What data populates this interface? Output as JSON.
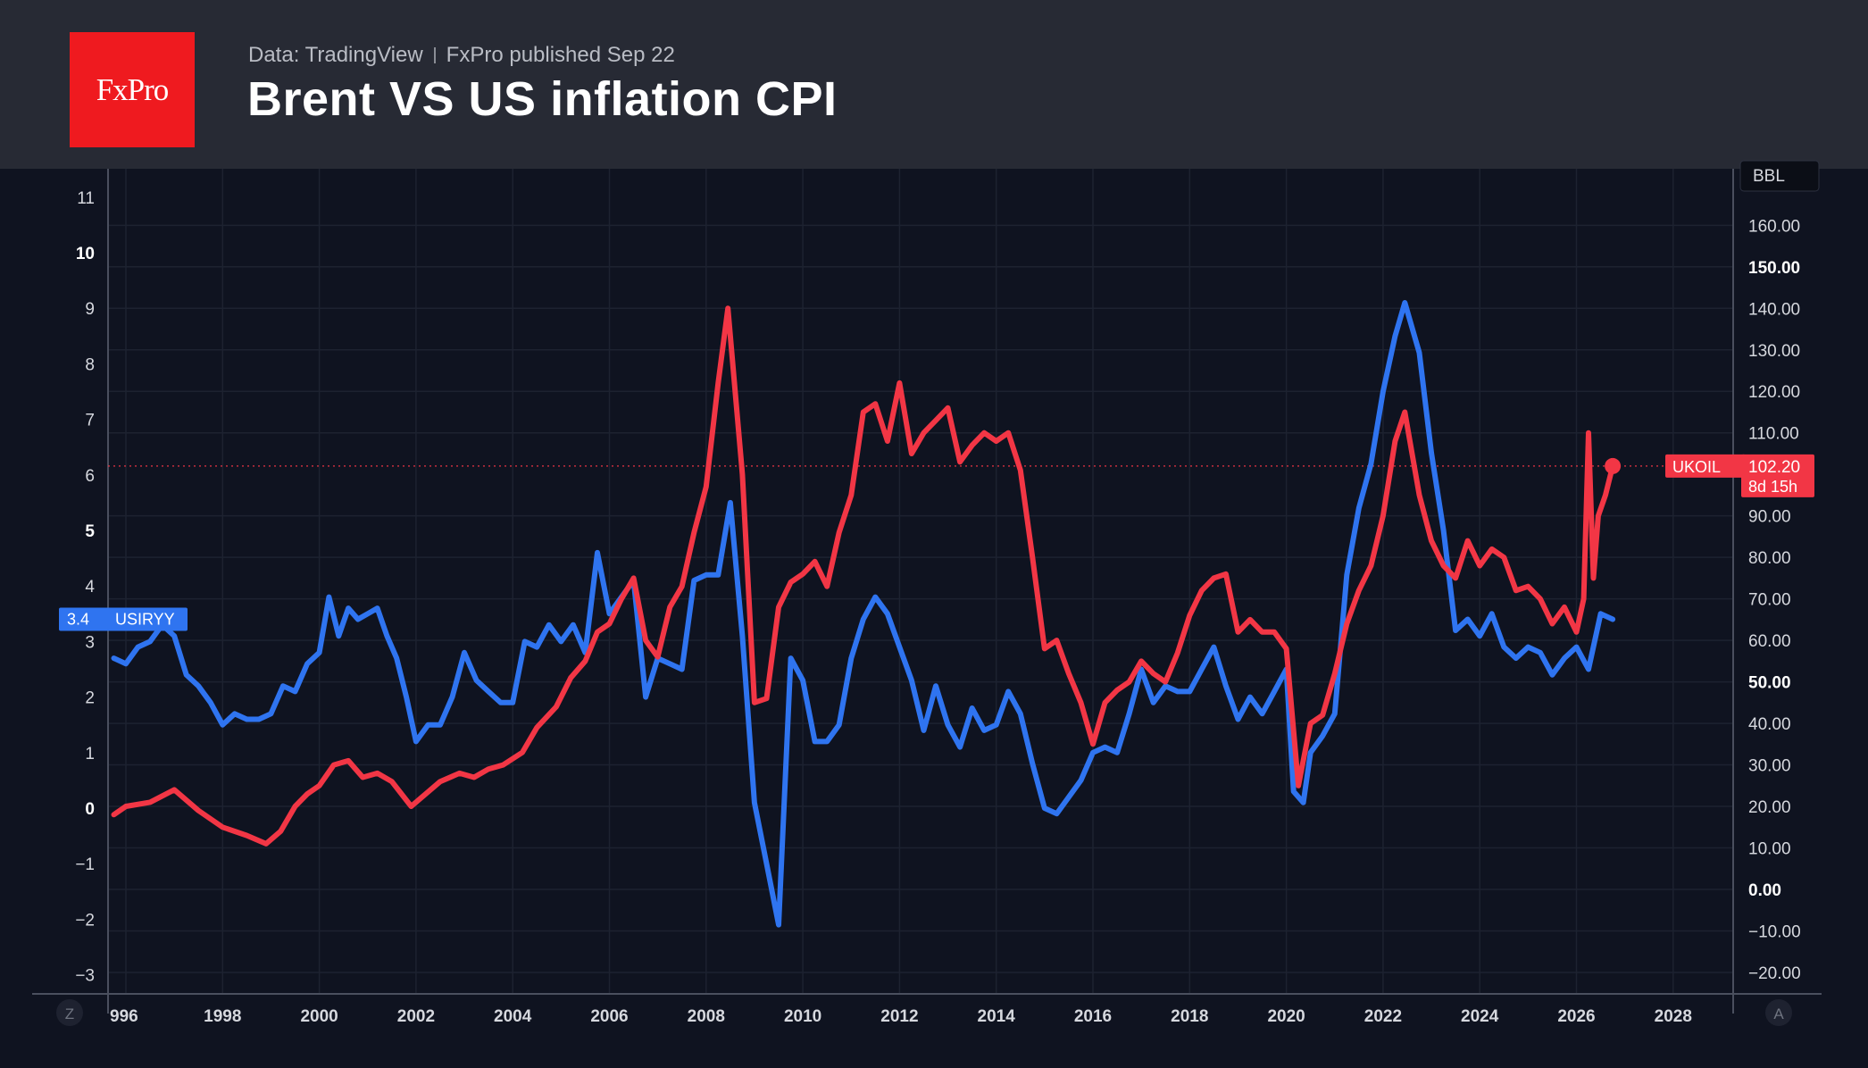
{
  "header": {
    "logo_text": "FxPro",
    "source": "Data: TradingView",
    "published": "FxPro published Sep 22",
    "title": "Brent VS US inflation CPI"
  },
  "colors": {
    "background": "#0f1320",
    "header_bg": "#272a34",
    "logo_bg": "#ef1a1f",
    "cpi_series": "#2f74f0",
    "brent_series": "#f23645",
    "grid": "#1f2433"
  },
  "chart_data": {
    "type": "line",
    "left_axis": {
      "ylim": [
        -3.5,
        11.5
      ],
      "ticks": [
        -3,
        -2,
        -1,
        0,
        1,
        2,
        3,
        4,
        5,
        6,
        7,
        8,
        9,
        10,
        11
      ],
      "bold_ticks": [
        0,
        5,
        10
      ]
    },
    "right_axis": {
      "unit_label": "BBL",
      "ylim": [
        -22.5,
        162.5
      ],
      "ticks": [
        "−20.00",
        "−10.00",
        "0.00",
        "10.00",
        "20.00",
        "30.00",
        "40.00",
        "50.00",
        "60.00",
        "70.00",
        "80.00",
        "90.00",
        "110.00",
        "120.00",
        "130.00",
        "140.00",
        "150.00",
        "160.00"
      ],
      "tick_values": [
        -20,
        -10,
        0,
        10,
        20,
        30,
        40,
        50,
        60,
        70,
        80,
        90,
        110,
        120,
        130,
        140,
        150,
        160
      ],
      "bold_ticks": [
        0,
        50,
        150
      ]
    },
    "x_axis": {
      "ticks": [
        "996",
        "1998",
        "2000",
        "2002",
        "2004",
        "2006",
        "2008",
        "2010",
        "2012",
        "2014",
        "2016",
        "2018",
        "2020",
        "2022",
        "2024",
        "2026",
        "2028"
      ],
      "tick_years": [
        1996,
        1998,
        2000,
        2002,
        2004,
        2006,
        2008,
        2010,
        2012,
        2014,
        2016,
        2018,
        2020,
        2022,
        2024,
        2026,
        2028
      ],
      "xlim": [
        1995.7,
        2029.3
      ]
    },
    "corner_left": "Z",
    "corner_right": "A",
    "series": [
      {
        "name": "USIRYY",
        "axis": "left",
        "last_value_label": "3.4",
        "x": [
          1995.75,
          1996.0,
          1996.25,
          1996.5,
          1996.75,
          1997.0,
          1997.25,
          1997.5,
          1997.75,
          1998.0,
          1998.25,
          1998.5,
          1998.75,
          1999.0,
          1999.25,
          1999.5,
          1999.75,
          2000.0,
          2000.2,
          2000.4,
          2000.6,
          2000.8,
          2001.0,
          2001.2,
          2001.4,
          2001.6,
          2001.8,
          2002.0,
          2002.25,
          2002.5,
          2002.75,
          2003.0,
          2003.25,
          2003.5,
          2003.75,
          2004.0,
          2004.25,
          2004.5,
          2004.75,
          2005.0,
          2005.25,
          2005.5,
          2005.75,
          2006.0,
          2006.25,
          2006.5,
          2006.75,
          2007.0,
          2007.25,
          2007.5,
          2007.75,
          2008.0,
          2008.25,
          2008.5,
          2008.75,
          2009.0,
          2009.25,
          2009.5,
          2009.75,
          2010.0,
          2010.25,
          2010.5,
          2010.75,
          2011.0,
          2011.25,
          2011.5,
          2011.75,
          2012.0,
          2012.25,
          2012.5,
          2012.75,
          2013.0,
          2013.25,
          2013.5,
          2013.75,
          2014.0,
          2014.25,
          2014.5,
          2014.75,
          2015.0,
          2015.25,
          2015.5,
          2015.75,
          2016.0,
          2016.25,
          2016.5,
          2016.75,
          2017.0,
          2017.25,
          2017.5,
          2017.75,
          2018.0,
          2018.25,
          2018.5,
          2018.75,
          2019.0,
          2019.25,
          2019.5,
          2019.75,
          2020.0,
          2020.15,
          2020.35,
          2020.5,
          2020.75,
          2021.0,
          2021.25,
          2021.5,
          2021.75,
          2022.0,
          2022.25,
          2022.45,
          2022.75,
          2023.0,
          2023.25,
          2023.5,
          2023.75,
          2024.0,
          2024.25,
          2024.5,
          2024.75,
          2025.0,
          2025.25,
          2025.5,
          2025.75,
          2026.0,
          2026.25,
          2026.5,
          2026.75
        ],
        "values": [
          2.7,
          2.6,
          2.9,
          3.0,
          3.3,
          3.1,
          2.4,
          2.2,
          1.9,
          1.5,
          1.7,
          1.6,
          1.6,
          1.7,
          2.2,
          2.1,
          2.6,
          2.8,
          3.8,
          3.1,
          3.6,
          3.4,
          3.5,
          3.6,
          3.1,
          2.7,
          2.0,
          1.2,
          1.5,
          1.5,
          2.0,
          2.8,
          2.3,
          2.1,
          1.9,
          1.9,
          3.0,
          2.9,
          3.3,
          3.0,
          3.3,
          2.8,
          4.6,
          3.5,
          3.8,
          4.1,
          2.0,
          2.7,
          2.6,
          2.5,
          4.1,
          4.2,
          4.2,
          5.5,
          3.1,
          0.1,
          -1.0,
          -2.1,
          2.7,
          2.3,
          1.2,
          1.2,
          1.5,
          2.7,
          3.4,
          3.8,
          3.5,
          2.9,
          2.3,
          1.4,
          2.2,
          1.5,
          1.1,
          1.8,
          1.4,
          1.5,
          2.1,
          1.7,
          0.8,
          0.0,
          -0.1,
          0.2,
          0.5,
          1.0,
          1.1,
          1.0,
          1.7,
          2.5,
          1.9,
          2.2,
          2.1,
          2.1,
          2.5,
          2.9,
          2.2,
          1.6,
          2.0,
          1.7,
          2.1,
          2.5,
          0.3,
          0.1,
          1.0,
          1.3,
          1.7,
          4.2,
          5.4,
          6.2,
          7.5,
          8.5,
          9.1,
          8.2,
          6.4,
          5.0,
          3.2,
          3.4,
          3.1,
          3.5,
          2.9,
          2.7,
          2.9,
          2.8,
          2.4,
          2.7,
          2.9,
          2.5,
          3.5,
          3.4
        ]
      },
      {
        "name": "UKOIL",
        "axis": "right",
        "last_value_label": "102.20",
        "countdown": "8d 15h",
        "x": [
          1995.75,
          1996.0,
          1996.5,
          1997.0,
          1997.5,
          1998.0,
          1998.5,
          1998.9,
          1999.2,
          1999.5,
          1999.75,
          2000.0,
          2000.3,
          2000.6,
          2000.9,
          2001.2,
          2001.5,
          2001.9,
          2002.2,
          2002.5,
          2002.9,
          2003.2,
          2003.5,
          2003.8,
          2004.2,
          2004.5,
          2004.9,
          2005.2,
          2005.5,
          2005.75,
          2006.0,
          2006.25,
          2006.5,
          2006.75,
          2007.0,
          2007.25,
          2007.5,
          2007.75,
          2008.0,
          2008.25,
          2008.45,
          2008.75,
          2009.0,
          2009.25,
          2009.5,
          2009.75,
          2010.0,
          2010.25,
          2010.5,
          2010.75,
          2011.0,
          2011.25,
          2011.5,
          2011.75,
          2012.0,
          2012.25,
          2012.5,
          2012.75,
          2013.0,
          2013.25,
          2013.5,
          2013.75,
          2014.0,
          2014.25,
          2014.5,
          2014.75,
          2015.0,
          2015.25,
          2015.5,
          2015.75,
          2016.0,
          2016.25,
          2016.5,
          2016.75,
          2017.0,
          2017.25,
          2017.5,
          2017.75,
          2018.0,
          2018.25,
          2018.5,
          2018.75,
          2019.0,
          2019.25,
          2019.5,
          2019.75,
          2020.0,
          2020.25,
          2020.5,
          2020.75,
          2021.0,
          2021.25,
          2021.5,
          2021.75,
          2022.0,
          2022.25,
          2022.45,
          2022.75,
          2023.0,
          2023.25,
          2023.5,
          2023.75,
          2024.0,
          2024.25,
          2024.5,
          2024.75,
          2025.0,
          2025.25,
          2025.5,
          2025.75,
          2026.0,
          2026.15,
          2026.25,
          2026.35,
          2026.45,
          2026.6,
          2026.75
        ],
        "values": [
          18,
          20,
          21,
          24,
          19,
          15,
          13,
          11,
          14,
          20,
          23,
          25,
          30,
          31,
          27,
          28,
          26,
          20,
          23,
          26,
          28,
          27,
          29,
          30,
          33,
          39,
          44,
          51,
          55,
          62,
          64,
          70,
          75,
          60,
          56,
          68,
          73,
          86,
          97,
          122,
          140,
          100,
          45,
          46,
          68,
          74,
          76,
          79,
          73,
          86,
          95,
          115,
          117,
          108,
          122,
          105,
          110,
          113,
          116,
          103,
          107,
          110,
          108,
          110,
          101,
          80,
          58,
          60,
          52,
          45,
          35,
          45,
          48,
          50,
          55,
          52,
          50,
          57,
          66,
          72,
          75,
          76,
          62,
          65,
          62,
          62,
          58,
          25,
          40,
          42,
          52,
          64,
          72,
          78,
          90,
          108,
          115,
          95,
          84,
          78,
          75,
          84,
          78,
          82,
          80,
          72,
          73,
          70,
          64,
          68,
          62,
          70,
          110,
          75,
          90,
          95,
          102
        ]
      }
    ]
  }
}
